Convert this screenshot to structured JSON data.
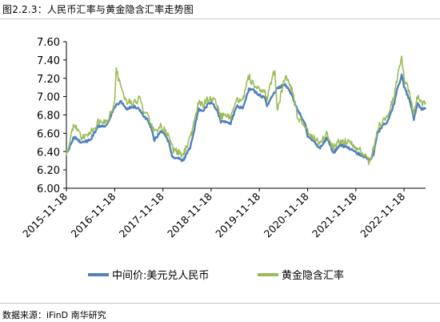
{
  "header": {
    "title": "图2.2.3：人民币汇率与黄金隐含汇率走势图"
  },
  "footer": {
    "source": "数据来源：iFinD  南华研究"
  },
  "colors": {
    "cny": "#4f81bd",
    "gold": "#9bbb59"
  },
  "chart_data": {
    "type": "line",
    "title": "",
    "xlabel": "",
    "ylabel": "",
    "ylim": [
      6.0,
      7.6
    ],
    "yticks": [
      "6.00",
      "6.20",
      "6.40",
      "6.60",
      "6.80",
      "7.00",
      "7.20",
      "7.40",
      "7.60"
    ],
    "xticks": [
      "2015-11-18",
      "2016-11-18",
      "2017-11-18",
      "2018-11-18",
      "2019-11-18",
      "2020-11-18",
      "2021-11-18",
      "2022-11-18"
    ],
    "x_range": [
      "2015-11-18",
      "2023-04-30"
    ],
    "grid": false,
    "legend": "bottom",
    "series": [
      {
        "name": "中间价:美元兑人民币",
        "color": "#4f81bd",
        "points": [
          [
            "2015-11-18",
            6.37
          ],
          [
            "2016-01-15",
            6.56
          ],
          [
            "2016-03-15",
            6.5
          ],
          [
            "2016-05-15",
            6.52
          ],
          [
            "2016-07-15",
            6.68
          ],
          [
            "2016-09-15",
            6.68
          ],
          [
            "2016-11-18",
            6.89
          ],
          [
            "2017-01-05",
            6.95
          ],
          [
            "2017-02-15",
            6.87
          ],
          [
            "2017-04-15",
            6.89
          ],
          [
            "2017-05-25",
            6.86
          ],
          [
            "2017-06-30",
            6.78
          ],
          [
            "2017-07-31",
            6.74
          ],
          [
            "2017-08-31",
            6.6
          ],
          [
            "2017-09-15",
            6.53
          ],
          [
            "2017-10-31",
            6.62
          ],
          [
            "2017-11-18",
            6.62
          ],
          [
            "2017-12-31",
            6.51
          ],
          [
            "2018-01-31",
            6.33
          ],
          [
            "2018-03-15",
            6.33
          ],
          [
            "2018-04-15",
            6.29
          ],
          [
            "2018-05-15",
            6.37
          ],
          [
            "2018-06-15",
            6.45
          ],
          [
            "2018-07-15",
            6.65
          ],
          [
            "2018-08-15",
            6.86
          ],
          [
            "2018-09-15",
            6.84
          ],
          [
            "2018-10-31",
            6.93
          ],
          [
            "2018-11-18",
            6.94
          ],
          [
            "2018-12-31",
            6.86
          ],
          [
            "2019-01-31",
            6.73
          ],
          [
            "2019-03-15",
            6.73
          ],
          [
            "2019-04-15",
            6.71
          ],
          [
            "2019-05-31",
            6.9
          ],
          [
            "2019-07-15",
            6.87
          ],
          [
            "2019-08-31",
            7.08
          ],
          [
            "2019-09-30",
            7.07
          ],
          [
            "2019-11-18",
            7.02
          ],
          [
            "2019-12-31",
            6.98
          ],
          [
            "2020-01-15",
            6.9
          ],
          [
            "2020-02-15",
            6.98
          ],
          [
            "2020-03-31",
            7.09
          ],
          [
            "2020-05-31",
            7.13
          ],
          [
            "2020-06-30",
            7.08
          ],
          [
            "2020-07-31",
            6.98
          ],
          [
            "2020-08-31",
            6.86
          ],
          [
            "2020-09-30",
            6.79
          ],
          [
            "2020-10-31",
            6.7
          ],
          [
            "2020-11-18",
            6.57
          ],
          [
            "2020-12-31",
            6.52
          ],
          [
            "2021-02-15",
            6.43
          ],
          [
            "2021-04-15",
            6.55
          ],
          [
            "2021-05-31",
            6.38
          ],
          [
            "2021-07-15",
            6.47
          ],
          [
            "2021-09-15",
            6.45
          ],
          [
            "2021-11-18",
            6.39
          ],
          [
            "2022-01-15",
            6.35
          ],
          [
            "2022-02-28",
            6.31
          ],
          [
            "2022-03-31",
            6.36
          ],
          [
            "2022-04-30",
            6.6
          ],
          [
            "2022-05-31",
            6.67
          ],
          [
            "2022-07-15",
            6.73
          ],
          [
            "2022-08-31",
            6.9
          ],
          [
            "2022-09-30",
            7.1
          ],
          [
            "2022-10-31",
            7.23
          ],
          [
            "2022-11-18",
            7.11
          ],
          [
            "2022-12-31",
            6.96
          ],
          [
            "2023-01-31",
            6.76
          ],
          [
            "2023-02-28",
            6.92
          ],
          [
            "2023-03-31",
            6.87
          ],
          [
            "2023-04-30",
            6.86
          ]
        ]
      },
      {
        "name": "黄金隐含汇率",
        "color": "#9bbb59",
        "points": [
          [
            "2015-11-18",
            6.36
          ],
          [
            "2015-12-31",
            6.62
          ],
          [
            "2016-01-15",
            6.7
          ],
          [
            "2016-03-15",
            6.55
          ],
          [
            "2016-05-15",
            6.6
          ],
          [
            "2016-07-15",
            6.72
          ],
          [
            "2016-09-15",
            6.73
          ],
          [
            "2016-10-31",
            6.85
          ],
          [
            "2016-11-18",
            6.98
          ],
          [
            "2016-11-30",
            7.32
          ],
          [
            "2016-12-15",
            7.2
          ],
          [
            "2017-01-05",
            7.1
          ],
          [
            "2017-02-15",
            6.95
          ],
          [
            "2017-04-15",
            6.93
          ],
          [
            "2017-05-25",
            6.98
          ],
          [
            "2017-06-30",
            6.82
          ],
          [
            "2017-07-31",
            6.78
          ],
          [
            "2017-08-31",
            6.66
          ],
          [
            "2017-09-15",
            6.62
          ],
          [
            "2017-10-31",
            6.68
          ],
          [
            "2017-11-18",
            6.66
          ],
          [
            "2017-12-31",
            6.56
          ],
          [
            "2018-01-31",
            6.42
          ],
          [
            "2018-03-15",
            6.4
          ],
          [
            "2018-04-15",
            6.35
          ],
          [
            "2018-05-15",
            6.44
          ],
          [
            "2018-06-15",
            6.55
          ],
          [
            "2018-07-15",
            6.72
          ],
          [
            "2018-08-15",
            6.94
          ],
          [
            "2018-09-15",
            6.9
          ],
          [
            "2018-10-31",
            6.98
          ],
          [
            "2018-11-18",
            6.99
          ],
          [
            "2018-12-31",
            6.92
          ],
          [
            "2019-01-31",
            6.78
          ],
          [
            "2019-03-15",
            6.8
          ],
          [
            "2019-04-15",
            6.75
          ],
          [
            "2019-05-31",
            6.98
          ],
          [
            "2019-07-15",
            6.95
          ],
          [
            "2019-08-31",
            7.22
          ],
          [
            "2019-09-30",
            7.14
          ],
          [
            "2019-11-18",
            7.09
          ],
          [
            "2019-12-31",
            7.05
          ],
          [
            "2020-01-15",
            6.98
          ],
          [
            "2020-02-15",
            7.15
          ],
          [
            "2020-03-15",
            7.3
          ],
          [
            "2020-03-31",
            6.85
          ],
          [
            "2020-05-31",
            7.22
          ],
          [
            "2020-06-30",
            7.15
          ],
          [
            "2020-07-31",
            7.03
          ],
          [
            "2020-08-31",
            6.78
          ],
          [
            "2020-09-30",
            6.73
          ],
          [
            "2020-10-31",
            6.68
          ],
          [
            "2020-11-18",
            6.62
          ],
          [
            "2020-12-31",
            6.57
          ],
          [
            "2021-02-15",
            6.48
          ],
          [
            "2021-04-15",
            6.6
          ],
          [
            "2021-05-31",
            6.44
          ],
          [
            "2021-07-15",
            6.52
          ],
          [
            "2021-09-15",
            6.5
          ],
          [
            "2021-11-18",
            6.45
          ],
          [
            "2022-01-15",
            6.38
          ],
          [
            "2022-02-28",
            6.28
          ],
          [
            "2022-03-31",
            6.42
          ],
          [
            "2022-04-30",
            6.65
          ],
          [
            "2022-05-31",
            6.72
          ],
          [
            "2022-07-15",
            6.8
          ],
          [
            "2022-08-31",
            6.98
          ],
          [
            "2022-09-30",
            7.22
          ],
          [
            "2022-10-31",
            7.42
          ],
          [
            "2022-11-18",
            7.2
          ],
          [
            "2022-12-31",
            7.05
          ],
          [
            "2023-01-31",
            6.82
          ],
          [
            "2023-02-28",
            7.0
          ],
          [
            "2023-03-31",
            6.92
          ],
          [
            "2023-04-30",
            6.94
          ]
        ]
      }
    ]
  }
}
